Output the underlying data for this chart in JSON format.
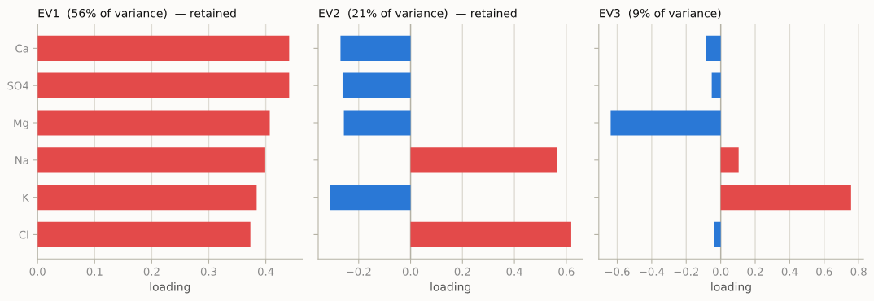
{
  "chart_data": [
    {
      "type": "bar",
      "orientation": "horizontal",
      "title": "EV1  (56% of variance)  — retained",
      "xlabel": "loading",
      "categories": [
        "Ca",
        "SO4",
        "Mg",
        "Na",
        "K",
        "Cl"
      ],
      "values": [
        0.441,
        0.441,
        0.407,
        0.399,
        0.384,
        0.373
      ],
      "colors": [
        "#e34a4a",
        "#e34a4a",
        "#e34a4a",
        "#e34a4a",
        "#e34a4a",
        "#e34a4a"
      ],
      "xlim": [
        0,
        0.464
      ],
      "xticks": [
        {
          "value": 0,
          "label": "0.0"
        },
        0.1,
        0.2,
        0.3,
        0.4
      ],
      "grid": "x"
    },
    {
      "type": "bar",
      "orientation": "horizontal",
      "title": "EV2  (21% of variance)  — retained",
      "xlabel": "loading",
      "categories": [
        null,
        null,
        null,
        null,
        null,
        null
      ],
      "values": [
        -0.27,
        -0.262,
        -0.257,
        0.565,
        -0.311,
        0.619
      ],
      "colors": [
        "#2a78d6",
        "#2a78d6",
        "#2a78d6",
        "#e34a4a",
        "#2a78d6",
        "#e34a4a"
      ],
      "xlim": [
        -0.356,
        0.664
      ],
      "xticks": [
        {
          "value": -0.2,
          "label": "−0.2"
        },
        {
          "value": 0,
          "label": "0.0"
        },
        0.2,
        0.4,
        0.6
      ],
      "grid": "x",
      "ref_lines": [
        {
          "axis": "x",
          "value": 0,
          "color": "#b5b2a5"
        }
      ]
    },
    {
      "type": "bar",
      "orientation": "horizontal",
      "title": "EV3  (9% of variance)",
      "xlabel": "loading",
      "categories": [
        null,
        null,
        null,
        null,
        null,
        null
      ],
      "values": [
        -0.085,
        -0.052,
        -0.638,
        0.104,
        0.756,
        -0.038
      ],
      "colors": [
        "#2a78d6",
        "#2a78d6",
        "#2a78d6",
        "#e34a4a",
        "#e34a4a",
        "#2a78d6"
      ],
      "xlim": [
        -0.707,
        0.828
      ],
      "xticks": [
        {
          "value": -0.6,
          "label": "−0.6"
        },
        {
          "value": -0.4,
          "label": "−0.4"
        },
        {
          "value": -0.2,
          "label": "−0.2"
        },
        {
          "value": 0,
          "label": "0.0"
        },
        0.2,
        0.4,
        0.6,
        0.8
      ],
      "grid": "x",
      "ref_lines": [
        {
          "axis": "x",
          "value": 0,
          "color": "#b5b2a5"
        }
      ]
    }
  ]
}
